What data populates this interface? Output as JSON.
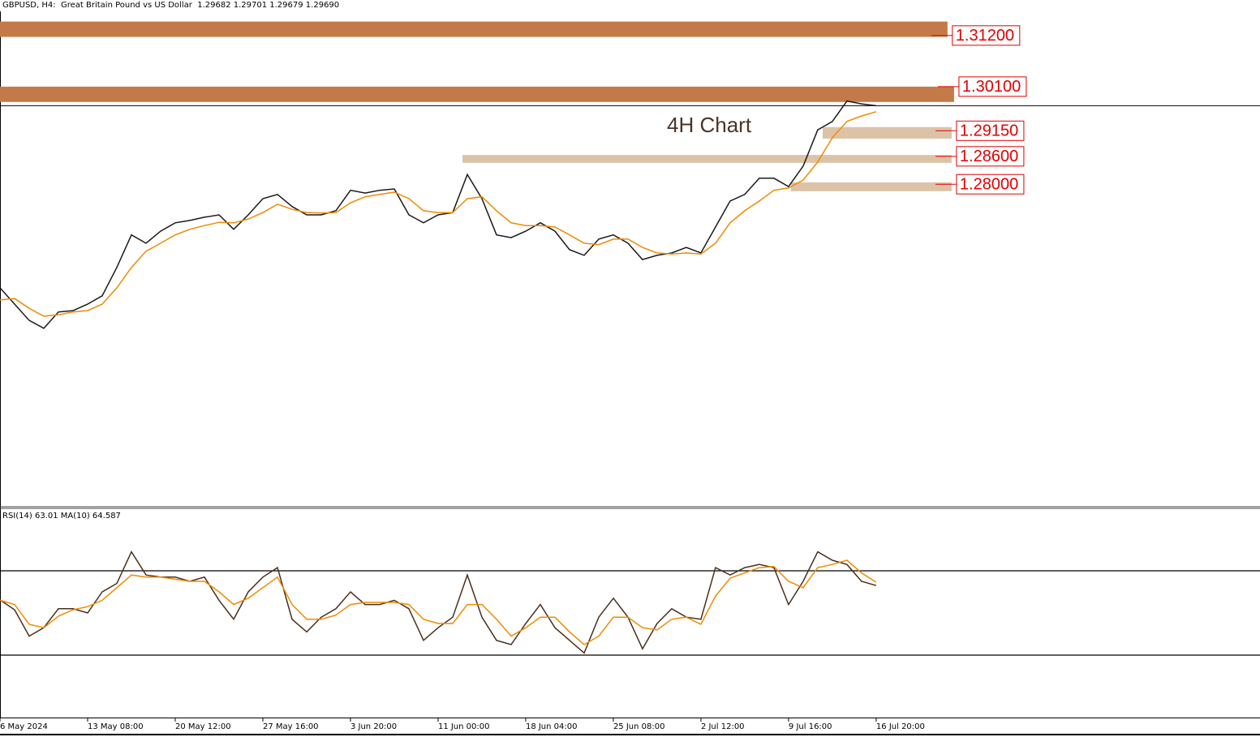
{
  "chart_data": [
    {
      "type": "line",
      "title": "GBPUSD, H4:  Great Britain Pound vs US Dollar  1.29682 1.29701 1.29679 1.29690",
      "annotation": "4H Chart",
      "xlim": [
        0,
        517.7
      ],
      "ylim": [
        1.2106,
        1.3172
      ],
      "price_line": 1.2969,
      "x": [
        0,
        6,
        12,
        18,
        24,
        30,
        36,
        42,
        48,
        54,
        60,
        66,
        72,
        78,
        84,
        90,
        96,
        102,
        108,
        114,
        120,
        126,
        132,
        138,
        144,
        150,
        156,
        162,
        168,
        174,
        180,
        186,
        192,
        198,
        204,
        210,
        216,
        222,
        228,
        234,
        240,
        246,
        252,
        258,
        264,
        270,
        276,
        282,
        288,
        294,
        300,
        306,
        312,
        318,
        324,
        330,
        336,
        342,
        348,
        354,
        360
      ],
      "series": [
        {
          "color": "#1a1a1a",
          "values": [
            1.2577,
            1.2542,
            1.2507,
            1.249,
            1.2525,
            1.2528,
            1.2542,
            1.256,
            1.2621,
            1.2691,
            1.2673,
            1.2699,
            1.2717,
            1.2722,
            1.2729,
            1.2734,
            1.2703,
            1.2734,
            1.2769,
            1.2778,
            1.2752,
            1.2734,
            1.2734,
            1.2743,
            1.2787,
            1.2781,
            1.2787,
            1.279,
            1.2734,
            1.2717,
            1.2734,
            1.2739,
            1.2821,
            1.2769,
            1.2691,
            1.2685,
            1.2699,
            1.2717,
            1.2699,
            1.2659,
            1.2647,
            1.2682,
            1.2691,
            1.2673,
            1.2638,
            1.2647,
            1.2652,
            1.2664,
            1.2652,
            1.2708,
            1.2764,
            1.2778,
            1.2813,
            1.2813,
            1.2795,
            1.2839,
            1.2917,
            1.2935,
            1.2979,
            1.2973,
            1.2969
          ]
        },
        {
          "color": "#f08a00",
          "values": [
            1.2551,
            1.2554,
            1.2533,
            1.2516,
            1.2519,
            1.2525,
            1.2528,
            1.2542,
            1.2577,
            1.2621,
            1.2656,
            1.2673,
            1.2691,
            1.2703,
            1.2711,
            1.2718,
            1.2717,
            1.2725,
            1.2739,
            1.2757,
            1.2746,
            1.2739,
            1.2738,
            1.2739,
            1.276,
            1.2773,
            1.2778,
            1.2783,
            1.2769,
            1.2743,
            1.2739,
            1.2739,
            1.2769,
            1.2773,
            1.2743,
            1.2717,
            1.2711,
            1.2711,
            1.2708,
            1.2691,
            1.2673,
            1.267,
            1.2682,
            1.2682,
            1.2664,
            1.2652,
            1.265,
            1.2652,
            1.265,
            1.2673,
            1.2717,
            1.2743,
            1.2764,
            1.2787,
            1.2792,
            1.2809,
            1.2848,
            1.29,
            1.2935,
            1.2947,
            1.2956
          ]
        }
      ],
      "zones": [
        {
          "label": "1.31200",
          "level": 1.312,
          "top": 1.315,
          "bottom": 1.3117,
          "start": 0,
          "end": 389.3,
          "color": "#c47a48"
        },
        {
          "label": "1.30100",
          "level": 1.301,
          "top": 1.301,
          "bottom": 1.2977,
          "start": 0,
          "end": 392,
          "color": "#c47a48"
        },
        {
          "label": "1.29150",
          "level": 1.2915,
          "top": 1.2923,
          "bottom": 1.2898,
          "start": 338,
          "end": 391,
          "color": "#dcc3a8"
        },
        {
          "label": "1.28600",
          "level": 1.286,
          "top": 1.2863,
          "bottom": 1.2846,
          "start": 190,
          "end": 391,
          "color": "#dcc3a8"
        },
        {
          "label": "1.28000",
          "level": 1.28,
          "top": 1.2804,
          "bottom": 1.2785,
          "start": 325,
          "end": 391,
          "color": "#dcc3a8"
        }
      ]
    },
    {
      "type": "line",
      "title": "RSI(14) 63.01 MA(10) 64.587",
      "xlim": [
        0,
        517.7
      ],
      "ylim": [
        0,
        100
      ],
      "levels": [
        70,
        30
      ],
      "x": [
        0,
        6,
        12,
        18,
        24,
        30,
        36,
        42,
        48,
        54,
        60,
        66,
        72,
        78,
        84,
        90,
        96,
        102,
        108,
        114,
        120,
        126,
        132,
        138,
        144,
        150,
        156,
        162,
        168,
        174,
        180,
        186,
        192,
        198,
        204,
        210,
        216,
        222,
        228,
        234,
        240,
        246,
        252,
        258,
        264,
        270,
        276,
        282,
        288,
        294,
        300,
        306,
        312,
        318,
        324,
        330,
        336,
        342,
        348,
        354,
        360
      ],
      "series": [
        {
          "color": "#4a2f1e",
          "values": [
            56.2,
            51.5,
            39,
            43,
            52,
            52,
            50,
            60,
            64,
            79,
            68,
            67,
            67,
            65,
            67,
            56,
            47,
            60,
            67,
            71.5,
            47,
            41,
            48,
            52,
            60,
            54,
            54,
            56,
            52,
            37,
            43,
            48,
            68,
            48,
            37,
            35,
            45,
            54,
            43,
            37,
            31,
            48,
            57,
            48,
            33,
            45,
            52,
            48,
            47,
            71.5,
            68,
            71.5,
            73,
            71.5,
            54,
            65,
            79,
            75,
            73,
            65,
            63.01
          ]
        },
        {
          "color": "#f08a00",
          "values": [
            56,
            54,
            44.6,
            43,
            48.5,
            51.5,
            53,
            56,
            62,
            68,
            67,
            67,
            66,
            65,
            65,
            60,
            54,
            57,
            62,
            67,
            54,
            47,
            47,
            49,
            54,
            55,
            55,
            55,
            54,
            47,
            45,
            45,
            54,
            54,
            47,
            39,
            43,
            48,
            48,
            41,
            35,
            39,
            48,
            48,
            43,
            42,
            47,
            48,
            44.6,
            58,
            66.5,
            69,
            71.5,
            72,
            65,
            62,
            71.5,
            73,
            75,
            69,
            64.587
          ]
        }
      ],
      "xticks": [
        {
          "value": 0,
          "label": "6 May 2024"
        },
        {
          "value": 36,
          "label": "13 May 08:00"
        },
        {
          "value": 72,
          "label": "20 May 12:00"
        },
        {
          "value": 108,
          "label": "27 May 16:00"
        },
        {
          "value": 144,
          "label": "3 Jun 20:00"
        },
        {
          "value": 180,
          "label": "11 Jun 00:00"
        },
        {
          "value": 216,
          "label": "18 Jun 04:00"
        },
        {
          "value": 252,
          "label": "25 Jun 08:00"
        },
        {
          "value": 288,
          "label": "2 Jul 12:00"
        },
        {
          "value": 324,
          "label": "9 Jul 16:00"
        },
        {
          "value": 360,
          "label": "16 Jul 20:00"
        }
      ]
    }
  ]
}
